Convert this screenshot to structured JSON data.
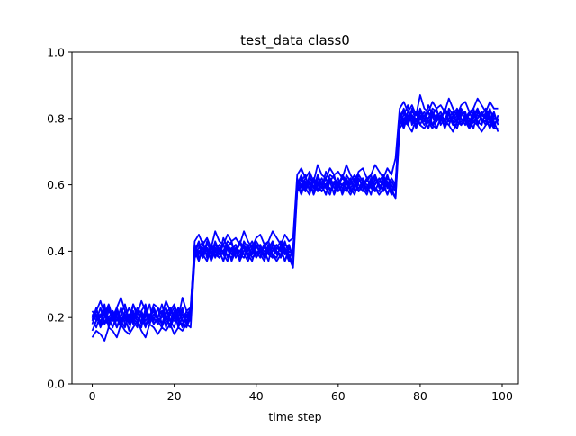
{
  "chart_data": {
    "type": "line",
    "title": "test_data class0",
    "xlabel": "time step",
    "ylabel": "",
    "xlim": [
      -4.95,
      103.95
    ],
    "ylim": [
      0.0,
      1.0
    ],
    "xticks": [
      0,
      20,
      40,
      60,
      80,
      100
    ],
    "yticks": [
      0.0,
      0.2,
      0.4,
      0.6,
      0.8,
      1.0
    ],
    "xtick_labels": [
      "0",
      "20",
      "40",
      "60",
      "80",
      "100"
    ],
    "ytick_labels": [
      "0.0",
      "0.2",
      "0.4",
      "0.6",
      "0.8",
      "1.0"
    ],
    "grid": false,
    "legend": "none",
    "line_color": "#0000ff",
    "x": [
      0,
      1,
      2,
      3,
      4,
      5,
      6,
      7,
      8,
      9,
      10,
      11,
      12,
      13,
      14,
      15,
      16,
      17,
      18,
      19,
      20,
      21,
      22,
      23,
      24,
      25,
      26,
      27,
      28,
      29,
      30,
      31,
      32,
      33,
      34,
      35,
      36,
      37,
      38,
      39,
      40,
      41,
      42,
      43,
      44,
      45,
      46,
      47,
      48,
      49,
      50,
      51,
      52,
      53,
      54,
      55,
      56,
      57,
      58,
      59,
      60,
      61,
      62,
      63,
      64,
      65,
      66,
      67,
      68,
      69,
      70,
      71,
      72,
      73,
      74,
      75,
      76,
      77,
      78,
      79,
      80,
      81,
      82,
      83,
      84,
      85,
      86,
      87,
      88,
      89,
      90,
      91,
      92,
      93,
      94,
      95,
      96,
      97,
      98,
      99
    ],
    "series": [
      {
        "values": [
          0.21,
          0.19,
          0.23,
          0.18,
          0.22,
          0.2,
          0.17,
          0.21,
          0.24,
          0.19,
          0.2,
          0.22,
          0.18,
          0.21,
          0.19,
          0.23,
          0.2,
          0.18,
          0.22,
          0.21,
          0.19,
          0.2,
          0.23,
          0.18,
          0.21,
          0.4,
          0.42,
          0.38,
          0.41,
          0.39,
          0.43,
          0.4,
          0.37,
          0.41,
          0.4,
          0.42,
          0.39,
          0.38,
          0.41,
          0.43,
          0.4,
          0.38,
          0.42,
          0.39,
          0.41,
          0.4,
          0.38,
          0.42,
          0.41,
          0.39,
          0.6,
          0.62,
          0.58,
          0.61,
          0.59,
          0.63,
          0.6,
          0.57,
          0.61,
          0.6,
          0.62,
          0.59,
          0.58,
          0.61,
          0.63,
          0.6,
          0.58,
          0.62,
          0.59,
          0.61,
          0.6,
          0.58,
          0.62,
          0.61,
          0.59,
          0.8,
          0.82,
          0.78,
          0.81,
          0.79,
          0.83,
          0.8,
          0.77,
          0.81,
          0.8,
          0.82,
          0.79,
          0.78,
          0.81,
          0.83,
          0.8,
          0.78,
          0.82,
          0.79,
          0.81,
          0.8,
          0.78,
          0.82,
          0.81,
          0.79
        ]
      },
      {
        "values": [
          0.18,
          0.22,
          0.2,
          0.24,
          0.17,
          0.21,
          0.19,
          0.23,
          0.2,
          0.16,
          0.22,
          0.19,
          0.21,
          0.2,
          0.24,
          0.18,
          0.2,
          0.22,
          0.17,
          0.21,
          0.23,
          0.19,
          0.18,
          0.22,
          0.2,
          0.39,
          0.41,
          0.43,
          0.38,
          0.42,
          0.4,
          0.39,
          0.44,
          0.41,
          0.37,
          0.4,
          0.42,
          0.41,
          0.38,
          0.4,
          0.43,
          0.41,
          0.39,
          0.42,
          0.38,
          0.41,
          0.43,
          0.4,
          0.37,
          0.41,
          0.59,
          0.61,
          0.63,
          0.58,
          0.62,
          0.6,
          0.59,
          0.64,
          0.61,
          0.57,
          0.6,
          0.62,
          0.61,
          0.58,
          0.6,
          0.63,
          0.61,
          0.59,
          0.62,
          0.58,
          0.61,
          0.63,
          0.6,
          0.57,
          0.61,
          0.79,
          0.81,
          0.84,
          0.78,
          0.82,
          0.8,
          0.79,
          0.84,
          0.81,
          0.77,
          0.8,
          0.82,
          0.81,
          0.78,
          0.8,
          0.83,
          0.81,
          0.79,
          0.82,
          0.78,
          0.81,
          0.83,
          0.8,
          0.77,
          0.81
        ]
      },
      {
        "values": [
          0.2,
          0.21,
          0.17,
          0.2,
          0.23,
          0.19,
          0.22,
          0.18,
          0.2,
          0.23,
          0.19,
          0.17,
          0.22,
          0.24,
          0.19,
          0.2,
          0.18,
          0.21,
          0.23,
          0.19,
          0.17,
          0.22,
          0.21,
          0.19,
          0.22,
          0.42,
          0.38,
          0.4,
          0.41,
          0.37,
          0.4,
          0.42,
          0.39,
          0.41,
          0.43,
          0.38,
          0.4,
          0.42,
          0.39,
          0.37,
          0.41,
          0.42,
          0.38,
          0.4,
          0.43,
          0.39,
          0.41,
          0.37,
          0.4,
          0.39,
          0.62,
          0.58,
          0.6,
          0.61,
          0.57,
          0.6,
          0.62,
          0.59,
          0.61,
          0.63,
          0.58,
          0.6,
          0.62,
          0.59,
          0.57,
          0.61,
          0.62,
          0.58,
          0.6,
          0.63,
          0.59,
          0.61,
          0.57,
          0.6,
          0.58,
          0.82,
          0.78,
          0.8,
          0.81,
          0.77,
          0.8,
          0.82,
          0.79,
          0.81,
          0.83,
          0.78,
          0.8,
          0.82,
          0.79,
          0.77,
          0.81,
          0.82,
          0.78,
          0.8,
          0.83,
          0.79,
          0.81,
          0.77,
          0.8,
          0.8
        ]
      },
      {
        "values": [
          0.16,
          0.19,
          0.21,
          0.18,
          0.2,
          0.22,
          0.17,
          0.2,
          0.19,
          0.21,
          0.18,
          0.22,
          0.2,
          0.17,
          0.21,
          0.19,
          0.23,
          0.18,
          0.2,
          0.19,
          0.22,
          0.17,
          0.2,
          0.21,
          0.19,
          0.38,
          0.4,
          0.41,
          0.39,
          0.42,
          0.38,
          0.41,
          0.4,
          0.42,
          0.39,
          0.41,
          0.37,
          0.4,
          0.42,
          0.38,
          0.39,
          0.41,
          0.4,
          0.37,
          0.42,
          0.4,
          0.39,
          0.41,
          0.38,
          0.4,
          0.58,
          0.6,
          0.61,
          0.59,
          0.62,
          0.58,
          0.61,
          0.6,
          0.62,
          0.59,
          0.61,
          0.57,
          0.6,
          0.62,
          0.58,
          0.59,
          0.61,
          0.6,
          0.57,
          0.62,
          0.6,
          0.59,
          0.61,
          0.58,
          0.6,
          0.78,
          0.8,
          0.81,
          0.79,
          0.82,
          0.78,
          0.81,
          0.8,
          0.82,
          0.79,
          0.81,
          0.77,
          0.8,
          0.82,
          0.78,
          0.79,
          0.81,
          0.8,
          0.77,
          0.82,
          0.8,
          0.79,
          0.81,
          0.78,
          0.8
        ]
      },
      {
        "values": [
          0.22,
          0.2,
          0.19,
          0.21,
          0.18,
          0.2,
          0.23,
          0.19,
          0.21,
          0.18,
          0.24,
          0.2,
          0.19,
          0.22,
          0.18,
          0.21,
          0.2,
          0.24,
          0.19,
          0.22,
          0.2,
          0.18,
          0.22,
          0.2,
          0.23,
          0.41,
          0.39,
          0.42,
          0.4,
          0.38,
          0.41,
          0.39,
          0.42,
          0.38,
          0.41,
          0.39,
          0.43,
          0.39,
          0.4,
          0.42,
          0.38,
          0.4,
          0.41,
          0.43,
          0.39,
          0.38,
          0.42,
          0.39,
          0.42,
          0.38,
          0.61,
          0.59,
          0.62,
          0.6,
          0.58,
          0.61,
          0.59,
          0.62,
          0.58,
          0.61,
          0.59,
          0.63,
          0.59,
          0.6,
          0.62,
          0.58,
          0.6,
          0.61,
          0.63,
          0.59,
          0.58,
          0.62,
          0.59,
          0.62,
          0.6,
          0.81,
          0.79,
          0.82,
          0.8,
          0.78,
          0.81,
          0.79,
          0.82,
          0.78,
          0.81,
          0.79,
          0.83,
          0.79,
          0.8,
          0.82,
          0.78,
          0.8,
          0.81,
          0.83,
          0.79,
          0.78,
          0.82,
          0.79,
          0.82,
          0.78
        ]
      },
      {
        "values": [
          0.19,
          0.23,
          0.18,
          0.22,
          0.2,
          0.17,
          0.21,
          0.22,
          0.18,
          0.2,
          0.21,
          0.19,
          0.17,
          0.23,
          0.2,
          0.22,
          0.19,
          0.2,
          0.21,
          0.17,
          0.2,
          0.23,
          0.19,
          0.17,
          0.2,
          0.4,
          0.43,
          0.39,
          0.42,
          0.41,
          0.4,
          0.38,
          0.4,
          0.43,
          0.42,
          0.4,
          0.38,
          0.43,
          0.41,
          0.39,
          0.42,
          0.4,
          0.38,
          0.41,
          0.4,
          0.42,
          0.4,
          0.43,
          0.39,
          0.36,
          0.6,
          0.63,
          0.59,
          0.62,
          0.61,
          0.6,
          0.58,
          0.6,
          0.63,
          0.62,
          0.6,
          0.58,
          0.63,
          0.61,
          0.59,
          0.62,
          0.6,
          0.58,
          0.61,
          0.6,
          0.62,
          0.6,
          0.63,
          0.59,
          0.56,
          0.8,
          0.83,
          0.79,
          0.82,
          0.81,
          0.8,
          0.78,
          0.8,
          0.83,
          0.82,
          0.8,
          0.78,
          0.83,
          0.81,
          0.79,
          0.82,
          0.8,
          0.78,
          0.81,
          0.8,
          0.82,
          0.8,
          0.83,
          0.79,
          0.76
        ]
      },
      {
        "values": [
          0.14,
          0.16,
          0.15,
          0.13,
          0.17,
          0.16,
          0.14,
          0.18,
          0.16,
          0.15,
          0.17,
          0.19,
          0.16,
          0.14,
          0.18,
          0.17,
          0.15,
          0.17,
          0.16,
          0.18,
          0.15,
          0.17,
          0.16,
          0.18,
          0.17,
          0.38,
          0.4,
          0.39,
          0.37,
          0.41,
          0.39,
          0.38,
          0.4,
          0.39,
          0.38,
          0.41,
          0.4,
          0.39,
          0.37,
          0.4,
          0.39,
          0.41,
          0.38,
          0.4,
          0.39,
          0.37,
          0.39,
          0.4,
          0.38,
          0.35,
          0.58,
          0.6,
          0.59,
          0.57,
          0.61,
          0.59,
          0.58,
          0.6,
          0.59,
          0.58,
          0.61,
          0.6,
          0.59,
          0.57,
          0.6,
          0.59,
          0.61,
          0.58,
          0.6,
          0.59,
          0.57,
          0.59,
          0.6,
          0.58,
          0.56,
          0.77,
          0.79,
          0.78,
          0.76,
          0.8,
          0.78,
          0.77,
          0.79,
          0.78,
          0.77,
          0.8,
          0.79,
          0.78,
          0.76,
          0.79,
          0.78,
          0.8,
          0.77,
          0.79,
          0.78,
          0.76,
          0.78,
          0.79,
          0.77,
          0.77
        ]
      },
      {
        "values": [
          0.2,
          0.22,
          0.25,
          0.21,
          0.24,
          0.2,
          0.23,
          0.26,
          0.22,
          0.2,
          0.24,
          0.21,
          0.25,
          0.22,
          0.2,
          0.24,
          0.23,
          0.21,
          0.25,
          0.22,
          0.24,
          0.2,
          0.26,
          0.22,
          0.23,
          0.43,
          0.45,
          0.42,
          0.44,
          0.41,
          0.46,
          0.43,
          0.42,
          0.45,
          0.43,
          0.44,
          0.42,
          0.46,
          0.43,
          0.41,
          0.44,
          0.45,
          0.42,
          0.43,
          0.46,
          0.44,
          0.42,
          0.45,
          0.43,
          0.44,
          0.63,
          0.65,
          0.62,
          0.64,
          0.61,
          0.66,
          0.63,
          0.62,
          0.65,
          0.63,
          0.64,
          0.62,
          0.66,
          0.63,
          0.61,
          0.64,
          0.65,
          0.62,
          0.63,
          0.66,
          0.64,
          0.62,
          0.65,
          0.63,
          0.68,
          0.83,
          0.85,
          0.82,
          0.84,
          0.81,
          0.87,
          0.83,
          0.82,
          0.85,
          0.83,
          0.84,
          0.82,
          0.86,
          0.83,
          0.81,
          0.84,
          0.85,
          0.82,
          0.83,
          0.86,
          0.84,
          0.82,
          0.85,
          0.83,
          0.83
        ]
      },
      {
        "values": [
          0.2,
          0.17,
          0.21,
          0.19,
          0.18,
          0.22,
          0.2,
          0.19,
          0.17,
          0.21,
          0.2,
          0.18,
          0.22,
          0.19,
          0.21,
          0.18,
          0.2,
          0.22,
          0.19,
          0.18,
          0.21,
          0.2,
          0.17,
          0.21,
          0.19,
          0.4,
          0.37,
          0.41,
          0.39,
          0.38,
          0.42,
          0.4,
          0.39,
          0.37,
          0.41,
          0.4,
          0.38,
          0.42,
          0.39,
          0.41,
          0.38,
          0.4,
          0.42,
          0.39,
          0.38,
          0.41,
          0.4,
          0.37,
          0.41,
          0.39,
          0.6,
          0.57,
          0.61,
          0.59,
          0.58,
          0.62,
          0.6,
          0.59,
          0.57,
          0.61,
          0.6,
          0.58,
          0.62,
          0.59,
          0.61,
          0.58,
          0.6,
          0.62,
          0.59,
          0.58,
          0.61,
          0.6,
          0.57,
          0.61,
          0.59,
          0.8,
          0.77,
          0.81,
          0.79,
          0.78,
          0.82,
          0.8,
          0.79,
          0.77,
          0.81,
          0.8,
          0.78,
          0.82,
          0.79,
          0.81,
          0.78,
          0.8,
          0.82,
          0.79,
          0.78,
          0.81,
          0.8,
          0.77,
          0.81,
          0.79
        ]
      },
      {
        "values": [
          0.21,
          0.2,
          0.18,
          0.23,
          0.19,
          0.21,
          0.2,
          0.17,
          0.22,
          0.2,
          0.19,
          0.23,
          0.21,
          0.18,
          0.2,
          0.22,
          0.19,
          0.17,
          0.21,
          0.23,
          0.2,
          0.19,
          0.21,
          0.18,
          0.2,
          0.41,
          0.4,
          0.38,
          0.43,
          0.39,
          0.41,
          0.4,
          0.37,
          0.42,
          0.4,
          0.39,
          0.43,
          0.41,
          0.38,
          0.4,
          0.42,
          0.39,
          0.37,
          0.41,
          0.43,
          0.4,
          0.39,
          0.41,
          0.38,
          0.4,
          0.61,
          0.6,
          0.58,
          0.63,
          0.59,
          0.61,
          0.6,
          0.57,
          0.62,
          0.6,
          0.59,
          0.63,
          0.61,
          0.58,
          0.6,
          0.62,
          0.59,
          0.57,
          0.61,
          0.63,
          0.6,
          0.59,
          0.61,
          0.58,
          0.6,
          0.81,
          0.8,
          0.78,
          0.83,
          0.79,
          0.81,
          0.8,
          0.77,
          0.82,
          0.8,
          0.79,
          0.83,
          0.81,
          0.78,
          0.8,
          0.82,
          0.79,
          0.77,
          0.81,
          0.83,
          0.8,
          0.79,
          0.81,
          0.78,
          0.8
        ]
      }
    ]
  }
}
